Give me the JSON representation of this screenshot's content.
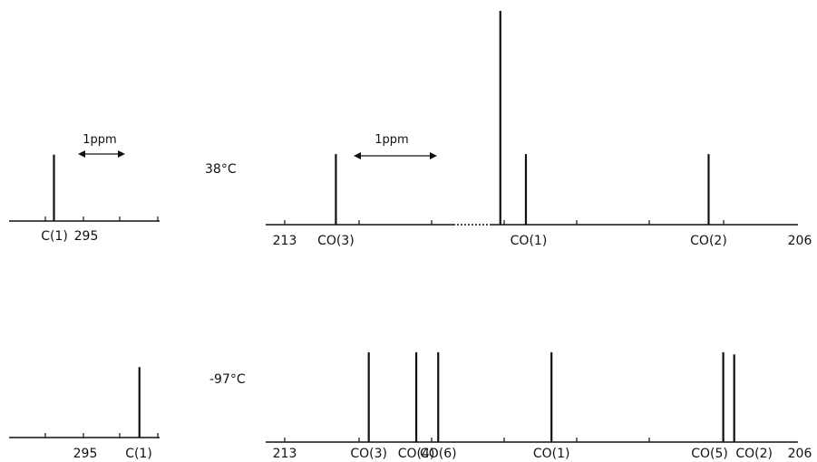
{
  "chart_data": [
    {
      "type": "line",
      "temperature_label": "38°C",
      "scale_bar_label": "1ppm",
      "x_tick_values": [
        295
      ],
      "x_tick_labels": [
        "295"
      ],
      "peaks": [
        {
          "label": "C(1)",
          "x": 295.25,
          "height": 0.33
        }
      ]
    },
    {
      "type": "line",
      "temperature_label": "38°C",
      "scale_bar_label": "1ppm",
      "xlim": [
        213,
        206
      ],
      "x_tick_labels": [
        "213",
        "206"
      ],
      "peaks": [
        {
          "label": "CO(3)",
          "x": 212.3,
          "height": 0.33
        },
        {
          "label": "",
          "x": 210.05,
          "height": 1.0
        },
        {
          "label": "CO(1)",
          "x": 209.7,
          "height": 0.33
        },
        {
          "label": "CO(2)",
          "x": 207.2,
          "height": 0.33
        }
      ]
    },
    {
      "type": "line",
      "temperature_label": "-97°C",
      "x_tick_values": [
        295
      ],
      "x_tick_labels": [
        "295"
      ],
      "peaks": [
        {
          "label": "C(1)",
          "x": 294.35,
          "height": 0.35
        }
      ]
    },
    {
      "type": "line",
      "temperature_label": "-97°C",
      "xlim": [
        213,
        206
      ],
      "x_tick_labels": [
        "213",
        "206"
      ],
      "peaks": [
        {
          "label": "CO(3)",
          "x": 211.85,
          "height": 0.42
        },
        {
          "label": "CO(4)",
          "x": 211.2,
          "height": 0.42
        },
        {
          "label": "CO(6)",
          "x": 210.9,
          "height": 0.42
        },
        {
          "label": "CO(1)",
          "x": 209.35,
          "height": 0.42
        },
        {
          "label": "CO(5)",
          "x": 207.0,
          "height": 0.42
        },
        {
          "label": "CO(2)",
          "x": 206.85,
          "height": 0.41
        }
      ]
    }
  ]
}
